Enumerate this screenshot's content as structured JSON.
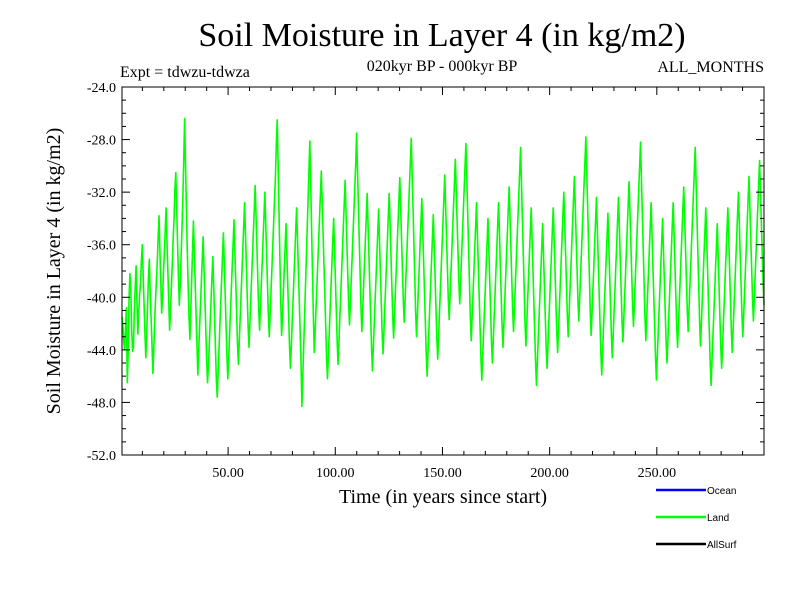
{
  "chart_data": {
    "type": "line",
    "title": "Soil Moisture in Layer 4 (in kg/m2)",
    "subtitle_left": "Expt = tdwzu-tdwza",
    "subtitle_center": "020kyr BP - 000kyr BP",
    "subtitle_right": "ALL_MONTHS",
    "xlabel": "Time (in years since start)",
    "ylabel": "Soil Moisture in Layer 4 (in kg/m2)",
    "xlim": [
      0.5,
      300
    ],
    "ylim": [
      -52.0,
      -24.0
    ],
    "x_ticks": [
      50,
      100,
      150,
      200,
      250
    ],
    "x_tick_labels": [
      "50.00",
      "100.00",
      "150.00",
      "200.00",
      "250.00"
    ],
    "y_ticks": [
      -52,
      -48,
      -44,
      -40,
      -36,
      -32,
      -28,
      -24
    ],
    "y_tick_labels": [
      "-52.0",
      "-48.0",
      "-44.0",
      "-40.0",
      "-36.0",
      "-32.0",
      "-28.0",
      "-24.0"
    ],
    "grid": false,
    "legend_position": "bottom-right",
    "series": [
      {
        "name": "Ocean",
        "color": "#0000ff",
        "values": []
      },
      {
        "name": "Land",
        "color": "#00ff00",
        "x_start": 0.5,
        "x_step": 0.5,
        "values": [
          -41.5,
          -42.1,
          -43.4,
          -44.0,
          -42.3,
          -40.8,
          -46.5,
          -44.3,
          -40.0,
          -38.2,
          -39.4,
          -42.5,
          -44.1,
          -43.8,
          -41.0,
          -39.2,
          -37.6,
          -40.4,
          -42.8,
          -41.1,
          -39.8,
          -38.9,
          -37.2,
          -36.0,
          -38.3,
          -40.5,
          -42.7,
          -44.6,
          -42.9,
          -40.6,
          -38.4,
          -37.1,
          -39.8,
          -41.6,
          -43.5,
          -45.8,
          -44.1,
          -41.9,
          -40.2,
          -38.7,
          -37.3,
          -35.4,
          -33.8,
          -36.5,
          -38.9,
          -41.2,
          -40.0,
          -38.1,
          -36.7,
          -34.9,
          -33.2,
          -35.8,
          -38.0,
          -40.3,
          -42.5,
          -41.0,
          -39.3,
          -37.5,
          -35.6,
          -34.0,
          -31.8,
          -30.5,
          -33.2,
          -35.9,
          -38.4,
          -40.6,
          -39.1,
          -37.0,
          -34.8,
          -32.5,
          -29.6,
          -26.4,
          -29.8,
          -33.1,
          -36.4,
          -39.0,
          -41.5,
          -43.2,
          -41.0,
          -38.7,
          -36.4,
          -34.2,
          -36.5,
          -38.9,
          -41.3,
          -43.6,
          -45.9,
          -44.0,
          -42.3,
          -40.6,
          -38.8,
          -37.1,
          -35.4,
          -37.8,
          -40.1,
          -42.4,
          -44.8,
          -46.5,
          -45.2,
          -43.7,
          -41.9,
          -40.2,
          -38.5,
          -36.9,
          -39.2,
          -41.6,
          -43.9,
          -46.3,
          -47.6,
          -45.8,
          -44.0,
          -42.1,
          -40.3,
          -38.6,
          -36.8,
          -35.1,
          -37.4,
          -39.8,
          -42.1,
          -44.5,
          -46.2,
          -44.6,
          -42.9,
          -41.1,
          -39.4,
          -37.6,
          -35.9,
          -34.1,
          -36.5,
          -38.8,
          -41.2,
          -43.6,
          -45.1,
          -43.3,
          -41.6,
          -39.8,
          -38.1,
          -36.3,
          -34.6,
          -32.8,
          -35.2,
          -37.5,
          -39.9,
          -42.2,
          -43.8,
          -42.0,
          -40.3,
          -38.5,
          -36.8,
          -35.0,
          -33.3,
          -31.5,
          -33.8,
          -36.2,
          -38.6,
          -40.9,
          -42.5,
          -40.8,
          -39.0,
          -37.3,
          -35.5,
          -33.8,
          -32.0,
          -34.4,
          -36.7,
          -39.1,
          -41.4,
          -43.0,
          -41.3,
          -39.5,
          -37.8,
          -36.0,
          -34.3,
          -32.5,
          -30.8,
          -28.3,
          -26.5,
          -29.8,
          -33.4,
          -36.9,
          -40.3,
          -42.9,
          -41.4,
          -39.6,
          -37.9,
          -36.1,
          -34.4,
          -36.8,
          -39.1,
          -41.5,
          -43.8,
          -45.4,
          -43.7,
          -41.9,
          -40.2,
          -38.4,
          -36.7,
          -34.9,
          -33.2,
          -35.5,
          -37.9,
          -40.2,
          -42.6,
          -44.9,
          -48.3,
          -46.1,
          -43.8,
          -41.6,
          -39.3,
          -37.1,
          -34.8,
          -32.6,
          -30.3,
          -28.1,
          -31.4,
          -34.8,
          -38.1,
          -41.5,
          -44.2,
          -42.7,
          -40.9,
          -39.2,
          -37.4,
          -35.7,
          -33.9,
          -32.2,
          -30.4,
          -32.8,
          -35.1,
          -37.5,
          -39.8,
          -42.2,
          -44.6,
          -46.2,
          -44.5,
          -42.7,
          -41.0,
          -39.2,
          -37.5,
          -35.7,
          -34.0,
          -36.3,
          -38.7,
          -41.0,
          -43.4,
          -45.1,
          -43.4,
          -41.6,
          -39.9,
          -38.1,
          -36.4,
          -34.6,
          -32.9,
          -31.1,
          -33.5,
          -35.8,
          -38.2,
          -40.5,
          -42.1,
          -40.4,
          -38.6,
          -36.9,
          -35.1,
          -33.4,
          -31.6,
          -29.9,
          -27.5,
          -30.2,
          -32.8,
          -35.5,
          -38.1,
          -40.8,
          -42.6,
          -40.9,
          -39.1,
          -37.4,
          -35.6,
          -33.9,
          -32.1,
          -34.5,
          -36.8,
          -39.2,
          -41.5,
          -43.9,
          -45.6,
          -43.8,
          -42.1,
          -40.3,
          -38.6,
          -36.8,
          -35.1,
          -33.3,
          -35.7,
          -38.0,
          -40.4,
          -42.7,
          -44.3,
          -42.6,
          -40.8,
          -39.1,
          -37.3,
          -35.6,
          -33.8,
          -32.1,
          -34.4,
          -36.8,
          -39.1,
          -41.5,
          -43.1,
          -41.4,
          -39.6,
          -37.9,
          -36.1,
          -34.4,
          -32.6,
          -30.9,
          -33.2,
          -35.6,
          -37.9,
          -40.3,
          -41.9,
          -40.2,
          -38.4,
          -36.7,
          -34.9,
          -33.2,
          -31.4,
          -29.7,
          -27.9,
          -30.6,
          -33.2,
          -35.9,
          -38.5,
          -41.2,
          -43.0,
          -41.3,
          -39.5,
          -37.8,
          -36.0,
          -34.3,
          -32.5,
          -34.9,
          -37.2,
          -39.6,
          -41.9,
          -44.3,
          -46.0,
          -44.2,
          -42.5,
          -40.7,
          -39.0,
          -37.2,
          -35.5,
          -33.7,
          -36.1,
          -38.4,
          -40.8,
          -43.1,
          -44.7,
          -43.0,
          -41.2,
          -39.5,
          -37.7,
          -36.0,
          -34.2,
          -32.5,
          -30.7,
          -33.1,
          -35.4,
          -37.8,
          -40.1,
          -41.7,
          -40.0,
          -38.2,
          -36.5,
          -34.7,
          -33.0,
          -31.2,
          -29.5,
          -31.8,
          -34.2,
          -36.5,
          -38.9,
          -40.5,
          -38.8,
          -37.0,
          -35.3,
          -33.5,
          -31.8,
          -30.0,
          -28.3,
          -30.9,
          -33.6,
          -36.2,
          -38.9,
          -41.5,
          -43.3,
          -41.6,
          -39.8,
          -38.1,
          -36.3,
          -34.6,
          -32.8,
          -35.2,
          -37.5,
          -39.9,
          -42.2,
          -44.6,
          -46.3,
          -44.5,
          -42.8,
          -41.0,
          -39.3,
          -37.5,
          -35.8,
          -34.0,
          -36.4,
          -38.7,
          -41.1,
          -43.4,
          -45.0,
          -43.3,
          -41.5,
          -39.8,
          -38.0,
          -36.3,
          -34.5,
          -32.8,
          -35.1,
          -37.5,
          -39.8,
          -42.2,
          -43.8,
          -42.1,
          -40.3,
          -38.6,
          -36.8,
          -35.1,
          -33.3,
          -31.6,
          -33.9,
          -36.3,
          -38.6,
          -41.0,
          -42.6,
          -40.9,
          -39.1,
          -37.4,
          -35.6,
          -33.9,
          -32.1,
          -30.4,
          -28.6,
          -31.3,
          -33.9,
          -36.6,
          -39.2,
          -41.9,
          -43.7,
          -42.0,
          -40.2,
          -38.5,
          -36.7,
          -35.0,
          -33.2,
          -35.6,
          -37.9,
          -40.3,
          -42.6,
          -45.0,
          -46.7,
          -44.9,
          -43.2,
          -41.4,
          -39.7,
          -37.9,
          -36.2,
          -34.4,
          -36.8,
          -39.1,
          -41.5,
          -43.8,
          -45.4,
          -43.7,
          -41.9,
          -40.2,
          -38.4,
          -36.7,
          -34.9,
          -33.2,
          -35.5,
          -37.9,
          -40.2,
          -42.6,
          -44.2,
          -42.5,
          -40.7,
          -39.0,
          -37.2,
          -35.5,
          -33.7,
          -32.0,
          -34.3,
          -36.7,
          -39.0,
          -41.4,
          -43.0,
          -41.3,
          -39.5,
          -37.8,
          -36.0,
          -34.3,
          -32.5,
          -30.8,
          -33.1,
          -35.5,
          -37.8,
          -40.2,
          -41.8,
          -40.1,
          -38.3,
          -36.6,
          -34.8,
          -33.1,
          -31.3,
          -29.6,
          -27.8,
          -30.5,
          -33.1,
          -35.8,
          -38.4,
          -41.1,
          -42.9,
          -41.2,
          -39.4,
          -37.7,
          -35.9,
          -34.2,
          -32.4,
          -34.8,
          -37.1,
          -39.5,
          -41.8,
          -44.2,
          -45.9,
          -44.1,
          -42.4,
          -40.6,
          -38.9,
          -37.1,
          -35.4,
          -33.6,
          -36.0,
          -38.3,
          -40.7,
          -43.0,
          -44.6,
          -42.9,
          -41.1,
          -39.4,
          -37.6,
          -35.9,
          -34.1,
          -32.4,
          -34.7,
          -37.1,
          -39.4,
          -41.8,
          -43.4,
          -41.7,
          -39.9,
          -38.2,
          -36.4,
          -34.7,
          -32.9,
          -31.2,
          -33.5,
          -35.9,
          -38.2,
          -40.6,
          -42.2,
          -40.5,
          -38.7,
          -37.0,
          -35.2,
          -33.5,
          -31.7,
          -30.0,
          -28.2,
          -30.9,
          -33.5,
          -36.2,
          -38.8,
          -41.5,
          -43.3,
          -41.6,
          -39.8,
          -38.1,
          -36.3,
          -34.6,
          -32.8,
          -35.2,
          -37.5,
          -39.9,
          -42.2,
          -44.6,
          -46.3,
          -44.5,
          -42.8,
          -41.0,
          -39.3,
          -37.5,
          -35.8,
          -34.0,
          -36.4,
          -38.7,
          -41.1,
          -43.4,
          -45.0,
          -43.3,
          -41.5,
          -39.8,
          -38.0,
          -36.3,
          -34.5,
          -32.8,
          -35.1,
          -37.5,
          -39.8,
          -42.2,
          -43.8,
          -42.1,
          -40.3,
          -38.6,
          -36.8,
          -35.1,
          -33.3,
          -31.6,
          -33.9,
          -36.3,
          -38.6,
          -41.0,
          -42.6,
          -40.9,
          -39.1,
          -37.4,
          -35.6,
          -33.9,
          -32.1,
          -30.4,
          -28.6,
          -31.3,
          -33.9,
          -36.6,
          -39.2,
          -41.9,
          -43.7,
          -42.0,
          -40.2,
          -38.5,
          -36.7,
          -35.0,
          -33.2,
          -35.6,
          -37.9,
          -40.3,
          -42.6,
          -45.0,
          -46.7,
          -44.9,
          -43.2,
          -41.4,
          -39.7,
          -37.9,
          -36.2,
          -34.4,
          -36.8,
          -39.1,
          -41.5,
          -43.8,
          -45.4,
          -43.7,
          -41.9,
          -40.2,
          -38.4,
          -36.7,
          -34.9,
          -33.2,
          -35.5,
          -37.9,
          -40.2,
          -42.6,
          -44.2,
          -42.5,
          -40.7,
          -39.0,
          -37.2,
          -35.5,
          -33.7,
          -32.0,
          -34.3,
          -36.7,
          -39.0,
          -41.4,
          -43.0,
          -41.3,
          -39.5,
          -37.8,
          -36.0,
          -34.3,
          -32.5,
          -30.8,
          -33.1,
          -35.5,
          -37.8,
          -40.2,
          -41.8,
          -40.1,
          -38.3,
          -36.6,
          -34.8,
          -33.1,
          -31.3,
          -29.6,
          -31.9,
          -34.3,
          -36.6,
          -39.0,
          -40.6
        ]
      },
      {
        "name": "AllSurf",
        "color": "#000000",
        "values": []
      }
    ]
  }
}
